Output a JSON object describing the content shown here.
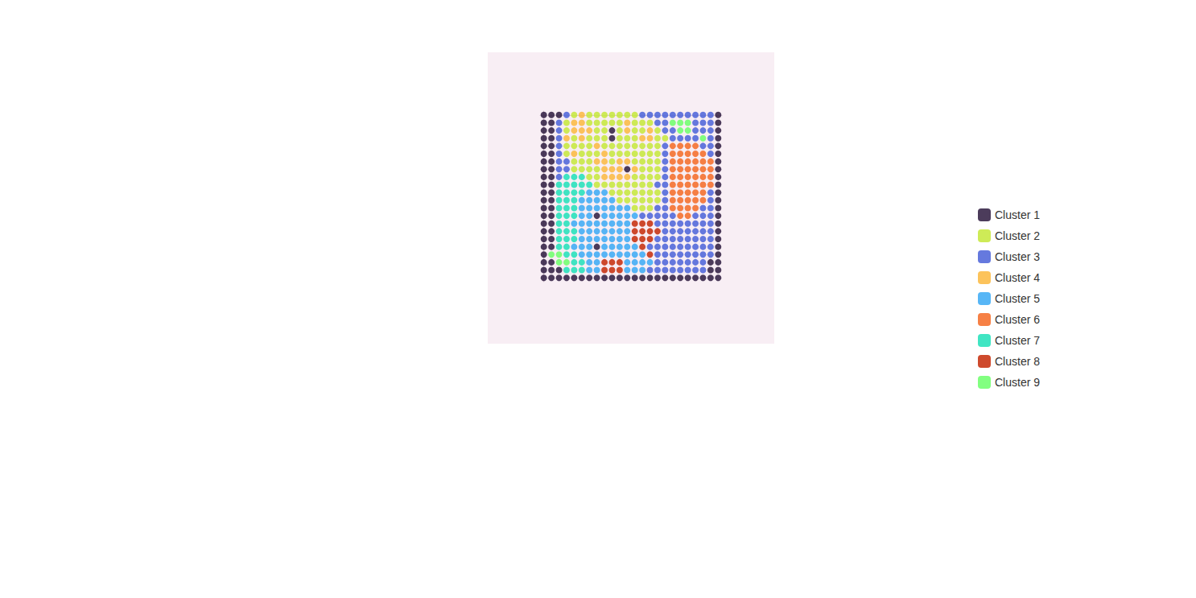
{
  "chart_data": {
    "type": "scatter",
    "series": [
      {
        "name": "Cluster 1",
        "color": "#2d1a3e"
      },
      {
        "name": "Cluster 2",
        "color": "#c6e83a"
      },
      {
        "name": "Cluster 3",
        "color": "#4a62d8"
      },
      {
        "name": "Cluster 4",
        "color": "#fbb83e"
      },
      {
        "name": "Cluster 5",
        "color": "#3aa9f4"
      },
      {
        "name": "Cluster 6",
        "color": "#f56a25"
      },
      {
        "name": "Cluster 7",
        "color": "#1fe0b8"
      },
      {
        "name": "Cluster 8",
        "color": "#c62a08"
      },
      {
        "name": "Cluster 9",
        "color": "#6cff6a"
      }
    ],
    "cells": [
      [
        1,
        1,
        1,
        3,
        2,
        4,
        2,
        2,
        2,
        2,
        2,
        2,
        2,
        3,
        3,
        3,
        3,
        3,
        3,
        3,
        3,
        3,
        3,
        1
      ],
      [
        1,
        1,
        3,
        2,
        4,
        4,
        2,
        2,
        2,
        2,
        2,
        4,
        2,
        2,
        2,
        3,
        3,
        9,
        9,
        9,
        3,
        3,
        3,
        1
      ],
      [
        1,
        1,
        3,
        2,
        4,
        4,
        4,
        2,
        2,
        1,
        2,
        4,
        2,
        2,
        4,
        2,
        3,
        3,
        9,
        9,
        3,
        3,
        3,
        1
      ],
      [
        1,
        1,
        3,
        4,
        2,
        4,
        2,
        2,
        2,
        1,
        2,
        2,
        2,
        4,
        4,
        2,
        2,
        3,
        3,
        3,
        3,
        9,
        3,
        1
      ],
      [
        1,
        1,
        3,
        2,
        2,
        2,
        2,
        4,
        2,
        2,
        2,
        2,
        2,
        2,
        2,
        2,
        3,
        6,
        6,
        6,
        6,
        3,
        3,
        1
      ],
      [
        1,
        1,
        3,
        2,
        4,
        2,
        2,
        2,
        4,
        2,
        2,
        2,
        2,
        2,
        2,
        2,
        3,
        6,
        6,
        6,
        6,
        6,
        3,
        1
      ],
      [
        1,
        1,
        3,
        3,
        2,
        2,
        2,
        4,
        4,
        2,
        4,
        4,
        2,
        2,
        2,
        2,
        3,
        6,
        6,
        6,
        6,
        6,
        6,
        1
      ],
      [
        1,
        1,
        3,
        3,
        2,
        2,
        2,
        2,
        4,
        4,
        4,
        1,
        4,
        2,
        2,
        2,
        3,
        6,
        6,
        6,
        6,
        6,
        6,
        1
      ],
      [
        1,
        1,
        3,
        7,
        7,
        7,
        2,
        2,
        4,
        4,
        4,
        4,
        2,
        2,
        2,
        2,
        3,
        6,
        6,
        6,
        6,
        6,
        6,
        1
      ],
      [
        1,
        1,
        7,
        7,
        7,
        7,
        7,
        2,
        2,
        2,
        2,
        2,
        2,
        2,
        2,
        3,
        3,
        6,
        6,
        6,
        6,
        6,
        6,
        1
      ],
      [
        1,
        1,
        7,
        7,
        7,
        7,
        5,
        5,
        5,
        2,
        2,
        2,
        2,
        2,
        2,
        2,
        3,
        6,
        6,
        6,
        6,
        6,
        3,
        1
      ],
      [
        1,
        1,
        7,
        7,
        7,
        5,
        5,
        5,
        5,
        5,
        2,
        2,
        2,
        2,
        2,
        2,
        3,
        6,
        6,
        6,
        6,
        6,
        3,
        1
      ],
      [
        1,
        1,
        7,
        7,
        7,
        5,
        5,
        5,
        5,
        5,
        5,
        5,
        2,
        2,
        2,
        3,
        3,
        6,
        6,
        6,
        6,
        3,
        3,
        1
      ],
      [
        1,
        1,
        7,
        7,
        7,
        5,
        5,
        1,
        5,
        5,
        5,
        5,
        5,
        3,
        3,
        3,
        3,
        3,
        6,
        6,
        3,
        3,
        3,
        1
      ],
      [
        1,
        1,
        7,
        7,
        5,
        5,
        5,
        5,
        5,
        5,
        5,
        5,
        8,
        8,
        8,
        3,
        3,
        3,
        3,
        3,
        3,
        3,
        3,
        1
      ],
      [
        1,
        1,
        7,
        7,
        7,
        5,
        5,
        5,
        5,
        5,
        5,
        5,
        8,
        8,
        8,
        8,
        3,
        3,
        3,
        3,
        3,
        3,
        3,
        1
      ],
      [
        1,
        1,
        7,
        7,
        7,
        5,
        5,
        5,
        5,
        5,
        5,
        5,
        8,
        8,
        8,
        3,
        3,
        3,
        3,
        3,
        3,
        3,
        3,
        1
      ],
      [
        1,
        1,
        7,
        7,
        5,
        5,
        5,
        1,
        5,
        5,
        5,
        5,
        5,
        8,
        3,
        3,
        3,
        3,
        3,
        3,
        3,
        3,
        3,
        1
      ],
      [
        1,
        9,
        9,
        7,
        7,
        5,
        5,
        5,
        5,
        5,
        5,
        5,
        5,
        5,
        8,
        3,
        3,
        3,
        3,
        3,
        3,
        3,
        3,
        1
      ],
      [
        1,
        1,
        9,
        9,
        7,
        7,
        5,
        5,
        8,
        8,
        8,
        5,
        5,
        5,
        5,
        3,
        3,
        3,
        3,
        3,
        3,
        3,
        1,
        1
      ],
      [
        1,
        1,
        1,
        7,
        7,
        7,
        5,
        5,
        8,
        8,
        8,
        5,
        5,
        5,
        3,
        3,
        3,
        3,
        3,
        3,
        3,
        3,
        1,
        1
      ],
      [
        1,
        1,
        1,
        1,
        1,
        1,
        1,
        1,
        1,
        1,
        1,
        1,
        1,
        1,
        1,
        1,
        1,
        1,
        1,
        1,
        1,
        1,
        1,
        1
      ]
    ],
    "xlim": [
      -0.5,
      23.5
    ],
    "ylim": [
      -0.5,
      21.5
    ],
    "tick_labels": false,
    "legend": "right"
  }
}
